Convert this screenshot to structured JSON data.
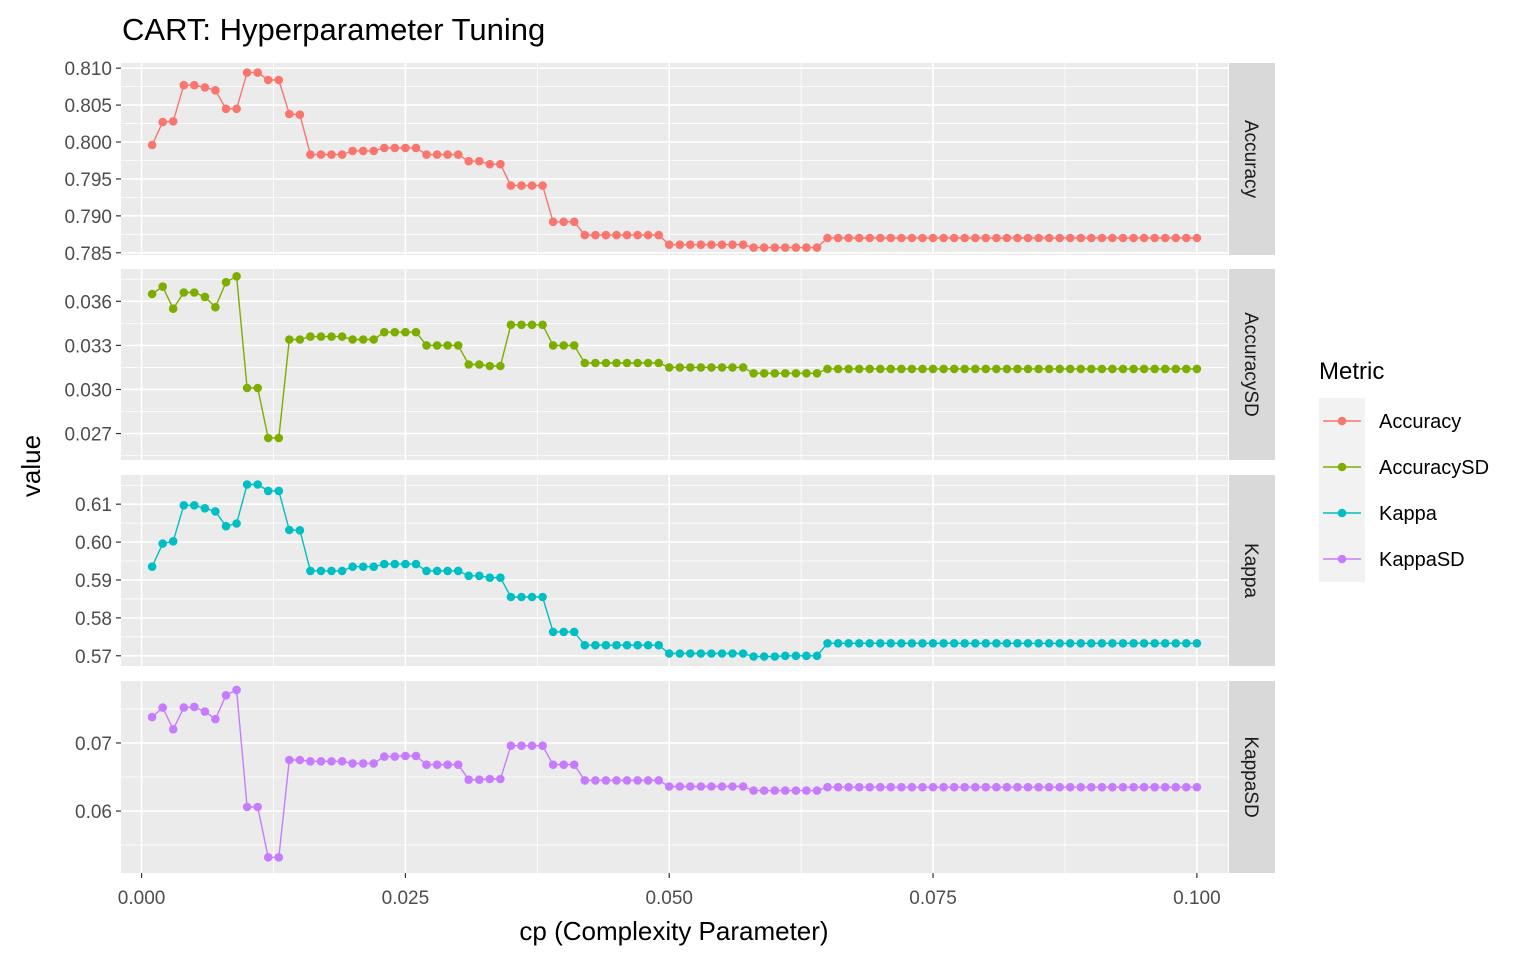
{
  "chart_data": {
    "type": "line",
    "title": "CART: Hyperparameter Tuning",
    "xlabel": "cp (Complexity Parameter)",
    "ylabel": "value",
    "x_ticks": [
      "0.000",
      "0.025",
      "0.050",
      "0.075",
      "0.100"
    ],
    "x_tick_values": [
      0,
      0.025,
      0.05,
      0.075,
      0.1
    ],
    "xlim": [
      -0.00195,
      0.10295
    ],
    "legend": {
      "title": "Metric",
      "position": "right"
    },
    "facets": [
      {
        "name": "Accuracy",
        "color": "#F8766D",
        "ylim": [
          0.7847,
          0.8107
        ],
        "y_ticks": [
          "0.785",
          "0.790",
          "0.795",
          "0.800",
          "0.805",
          "0.810"
        ],
        "y_tick_values": [
          0.785,
          0.79,
          0.795,
          0.8,
          0.805,
          0.81
        ],
        "values": [
          0.7996,
          0.8027,
          0.8028,
          0.8077,
          0.8077,
          0.8074,
          0.807,
          0.8045,
          0.8045,
          0.8094,
          0.8094,
          0.8084,
          0.8084,
          0.8038,
          0.8037,
          0.7983,
          0.7983,
          0.7983,
          0.7983,
          0.7988,
          0.7988,
          0.7988,
          0.7992,
          0.7992,
          0.7992,
          0.7992,
          0.7983,
          0.7983,
          0.7983,
          0.7983,
          0.7974,
          0.7974,
          0.797,
          0.797,
          0.7941,
          0.7941,
          0.7941,
          0.7941,
          0.7892,
          0.7892,
          0.7892,
          0.7874,
          0.7874,
          0.7874,
          0.7874,
          0.7874,
          0.7874,
          0.7874,
          0.7874,
          0.7861,
          0.7861,
          0.7861,
          0.7861,
          0.7861,
          0.7861,
          0.7861,
          0.7861,
          0.7857,
          0.7857,
          0.7857,
          0.7857,
          0.7857,
          0.7857,
          0.7857,
          0.787,
          0.787,
          0.787,
          0.787,
          0.787,
          0.787,
          0.787,
          0.787,
          0.787,
          0.787,
          0.787,
          0.787,
          0.787,
          0.787,
          0.787,
          0.787,
          0.787,
          0.787,
          0.787,
          0.787,
          0.787,
          0.787,
          0.787,
          0.787,
          0.787,
          0.787,
          0.787,
          0.787,
          0.787,
          0.787,
          0.787,
          0.787,
          0.787,
          0.787,
          0.787,
          0.787
        ]
      },
      {
        "name": "AccuracySD",
        "color": "#7CAE00",
        "ylim": [
          0.0252,
          0.0382
        ],
        "y_ticks": [
          "0.027",
          "0.030",
          "0.033",
          "0.036"
        ],
        "y_tick_values": [
          0.027,
          0.03,
          0.033,
          0.036
        ],
        "values": [
          0.0365,
          0.037,
          0.0355,
          0.0366,
          0.0366,
          0.0363,
          0.0356,
          0.0373,
          0.0377,
          0.0301,
          0.0301,
          0.0267,
          0.0267,
          0.0334,
          0.0334,
          0.0336,
          0.0336,
          0.0336,
          0.0336,
          0.0334,
          0.0334,
          0.0334,
          0.0339,
          0.0339,
          0.0339,
          0.0339,
          0.033,
          0.033,
          0.033,
          0.033,
          0.0317,
          0.0317,
          0.0316,
          0.0316,
          0.0344,
          0.0344,
          0.0344,
          0.0344,
          0.033,
          0.033,
          0.033,
          0.0318,
          0.0318,
          0.0318,
          0.0318,
          0.0318,
          0.0318,
          0.0318,
          0.0318,
          0.0315,
          0.0315,
          0.0315,
          0.0315,
          0.0315,
          0.0315,
          0.0315,
          0.0315,
          0.0311,
          0.0311,
          0.0311,
          0.0311,
          0.0311,
          0.0311,
          0.0311,
          0.0314,
          0.0314,
          0.0314,
          0.0314,
          0.0314,
          0.0314,
          0.0314,
          0.0314,
          0.0314,
          0.0314,
          0.0314,
          0.0314,
          0.0314,
          0.0314,
          0.0314,
          0.0314,
          0.0314,
          0.0314,
          0.0314,
          0.0314,
          0.0314,
          0.0314,
          0.0314,
          0.0314,
          0.0314,
          0.0314,
          0.0314,
          0.0314,
          0.0314,
          0.0314,
          0.0314,
          0.0314,
          0.0314,
          0.0314,
          0.0314,
          0.0314
        ]
      },
      {
        "name": "Kappa",
        "color": "#00BFC4",
        "ylim": [
          0.5673,
          0.6177
        ],
        "y_ticks": [
          "0.57",
          "0.58",
          "0.59",
          "0.60",
          "0.61"
        ],
        "y_tick_values": [
          0.57,
          0.58,
          0.59,
          0.6,
          0.61
        ],
        "values": [
          0.5935,
          0.5996,
          0.6002,
          0.6097,
          0.6097,
          0.6089,
          0.6081,
          0.6042,
          0.6049,
          0.6152,
          0.6152,
          0.6135,
          0.6135,
          0.6032,
          0.6031,
          0.5924,
          0.5924,
          0.5924,
          0.5924,
          0.5935,
          0.5935,
          0.5935,
          0.5942,
          0.5942,
          0.5942,
          0.5942,
          0.5924,
          0.5924,
          0.5924,
          0.5924,
          0.5911,
          0.5911,
          0.5906,
          0.5906,
          0.5855,
          0.5855,
          0.5855,
          0.5855,
          0.5763,
          0.5763,
          0.5763,
          0.5728,
          0.5728,
          0.5728,
          0.5728,
          0.5728,
          0.5728,
          0.5728,
          0.5728,
          0.5706,
          0.5706,
          0.5706,
          0.5706,
          0.5706,
          0.5706,
          0.5706,
          0.5706,
          0.5698,
          0.5698,
          0.5698,
          0.57,
          0.57,
          0.57,
          0.57,
          0.5733,
          0.5733,
          0.5733,
          0.5733,
          0.5733,
          0.5733,
          0.5733,
          0.5733,
          0.5733,
          0.5733,
          0.5733,
          0.5733,
          0.5733,
          0.5733,
          0.5733,
          0.5733,
          0.5733,
          0.5733,
          0.5733,
          0.5733,
          0.5733,
          0.5733,
          0.5733,
          0.5733,
          0.5733,
          0.5733,
          0.5733,
          0.5733,
          0.5733,
          0.5733,
          0.5733,
          0.5733,
          0.5733,
          0.5733,
          0.5733,
          0.5733
        ]
      },
      {
        "name": "KappaSD",
        "color": "#C77CFF",
        "ylim": [
          0.0509,
          0.0791
        ],
        "y_ticks": [
          "0.06",
          "0.07"
        ],
        "y_tick_values": [
          0.06,
          0.07
        ],
        "values": [
          0.0738,
          0.0752,
          0.072,
          0.0752,
          0.0753,
          0.0746,
          0.0735,
          0.077,
          0.0778,
          0.0606,
          0.0606,
          0.0532,
          0.0532,
          0.0675,
          0.0675,
          0.0673,
          0.0673,
          0.0673,
          0.0673,
          0.067,
          0.067,
          0.067,
          0.068,
          0.068,
          0.0681,
          0.0681,
          0.0668,
          0.0668,
          0.0668,
          0.0668,
          0.0646,
          0.0646,
          0.0647,
          0.0647,
          0.0696,
          0.0696,
          0.0696,
          0.0696,
          0.0668,
          0.0668,
          0.0668,
          0.0645,
          0.0645,
          0.0645,
          0.0645,
          0.0645,
          0.0645,
          0.0645,
          0.0645,
          0.0636,
          0.0636,
          0.0636,
          0.0636,
          0.0636,
          0.0636,
          0.0636,
          0.0636,
          0.063,
          0.063,
          0.063,
          0.063,
          0.063,
          0.063,
          0.063,
          0.0635,
          0.0635,
          0.0635,
          0.0635,
          0.0635,
          0.0635,
          0.0635,
          0.0635,
          0.0635,
          0.0635,
          0.0635,
          0.0635,
          0.0635,
          0.0635,
          0.0635,
          0.0635,
          0.0635,
          0.0635,
          0.0635,
          0.0635,
          0.0635,
          0.0635,
          0.0635,
          0.0635,
          0.0635,
          0.0635,
          0.0635,
          0.0635,
          0.0635,
          0.0635,
          0.0635,
          0.0635,
          0.0635,
          0.0635,
          0.0635,
          0.0635
        ]
      }
    ]
  }
}
